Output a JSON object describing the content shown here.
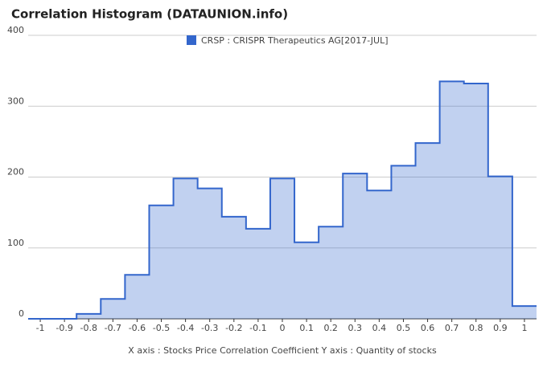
{
  "chart_data": {
    "type": "step-area",
    "title": "Correlation Histogram (DATAUNION.info)",
    "x_label": "X axis : Stocks Price Correlation Coefficient  Y axis : Quantity of stocks",
    "series": [
      {
        "name": "CRSP : CRISPR Therapeutics AG[2017-JUL]",
        "color": "#3366cc",
        "x": [
          -1,
          -0.9,
          -0.8,
          -0.7,
          -0.6,
          -0.5,
          -0.4,
          -0.3,
          -0.2,
          -0.1,
          0,
          0.1,
          0.2,
          0.3,
          0.4,
          0.5,
          0.6,
          0.7,
          0.8,
          0.9,
          1
        ],
        "values": [
          0,
          0,
          7,
          28,
          62,
          160,
          198,
          184,
          144,
          127,
          198,
          108,
          130,
          205,
          181,
          216,
          248,
          335,
          332,
          201,
          18
        ]
      }
    ],
    "xlim": [
      -1.05,
      1.05
    ],
    "xticks": [
      -1,
      -0.9,
      -0.8,
      -0.7,
      -0.6,
      -0.5,
      -0.4,
      -0.3,
      -0.2,
      -0.1,
      0,
      0.1,
      0.2,
      0.3,
      0.4,
      0.5,
      0.6,
      0.7,
      0.8,
      0.9,
      1
    ],
    "ylim": [
      0,
      400
    ],
    "yticks": [
      0,
      100,
      200,
      300,
      400
    ],
    "grid": true
  }
}
